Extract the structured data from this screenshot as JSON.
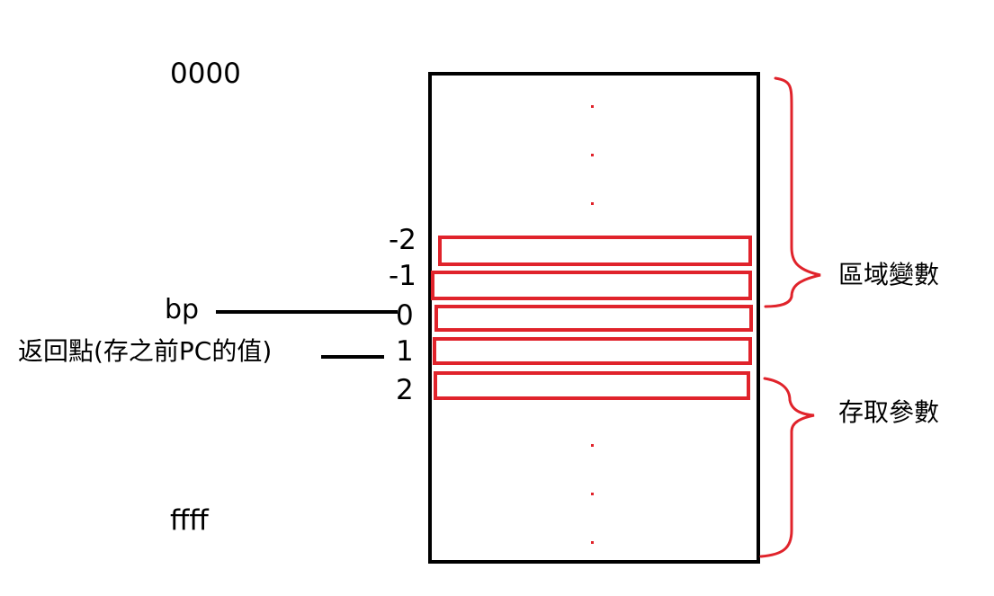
{
  "colors": {
    "frame": "#000000",
    "highlight": "#e0232b"
  },
  "addresses": {
    "top": "0000",
    "bottom": "ffff"
  },
  "offsets": [
    "-2",
    "-1",
    "0",
    "1",
    "2"
  ],
  "pointers": {
    "bp": "bp",
    "return_point": "返回點(存之前PC的值)"
  },
  "braces": {
    "locals": "區域變數",
    "params": "存取參數"
  }
}
